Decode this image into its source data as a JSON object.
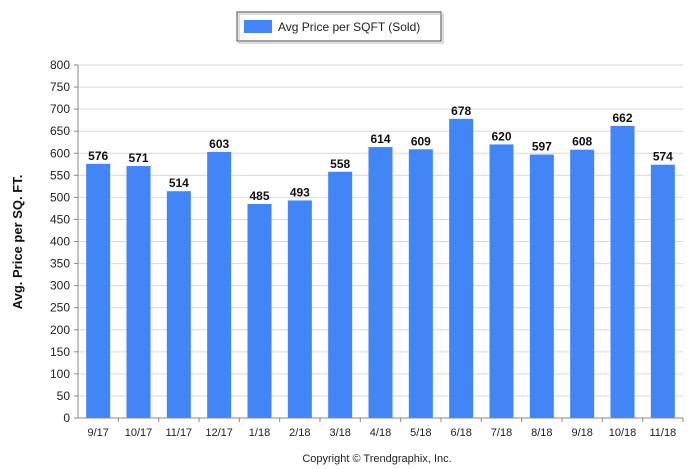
{
  "chart_data": {
    "type": "bar",
    "categories": [
      "9/17",
      "10/17",
      "11/17",
      "12/17",
      "1/18",
      "2/18",
      "3/18",
      "4/18",
      "5/18",
      "6/18",
      "7/18",
      "8/18",
      "9/18",
      "10/18",
      "11/18"
    ],
    "series": [
      {
        "name": "Avg Price per SQFT (Sold)",
        "values": [
          576,
          571,
          514,
          603,
          485,
          493,
          558,
          614,
          609,
          678,
          620,
          597,
          608,
          662,
          574
        ],
        "color": "#4285f4"
      }
    ],
    "ylabel": "Avg. Price per SQ. FT.",
    "xlabel": "",
    "ylim": [
      0,
      800
    ],
    "yticks": [
      0,
      50,
      100,
      150,
      200,
      250,
      300,
      350,
      400,
      450,
      500,
      550,
      600,
      650,
      700,
      750,
      800
    ],
    "grid": true,
    "legend_position": "top-center",
    "data_labels": true
  },
  "footer": {
    "copyright": "Copyright © Trendgraphix, Inc."
  }
}
